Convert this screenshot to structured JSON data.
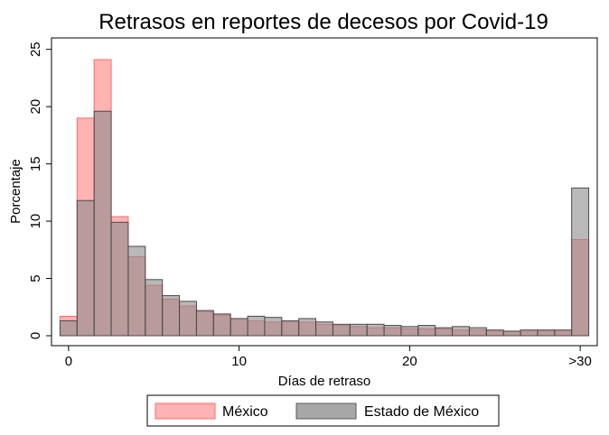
{
  "chart_data": {
    "type": "bar",
    "title": "Retrasos en reportes de decesos por Covid-19",
    "xlabel": "Días de retraso",
    "ylabel": "Porcentaje",
    "xlim": [
      -1,
      31
    ],
    "ylim": [
      0,
      26
    ],
    "x_ticks": [
      {
        "value": 0,
        "label": "0"
      },
      {
        "value": 10,
        "label": "10"
      },
      {
        "value": 20,
        "label": "20"
      },
      {
        "value": 30,
        "label": ">30"
      }
    ],
    "y_ticks": [
      {
        "value": 0,
        "label": "0"
      },
      {
        "value": 5,
        "label": "5"
      },
      {
        "value": 10,
        "label": "10"
      },
      {
        "value": 15,
        "label": "15"
      },
      {
        "value": 20,
        "label": "20"
      },
      {
        "value": 25,
        "label": "25"
      }
    ],
    "x": [
      0,
      1,
      2,
      3,
      4,
      5,
      6,
      7,
      8,
      9,
      10,
      11,
      12,
      13,
      14,
      15,
      16,
      17,
      18,
      19,
      20,
      21,
      22,
      23,
      24,
      25,
      26,
      27,
      28,
      29,
      30
    ],
    "series": [
      {
        "name": "México",
        "color": "#ff9999",
        "values": [
          1.7,
          19.0,
          24.1,
          10.4,
          6.9,
          4.4,
          3.2,
          2.6,
          2.1,
          1.8,
          1.5,
          1.3,
          1.2,
          1.2,
          1.2,
          1.0,
          0.9,
          0.8,
          0.7,
          0.7,
          0.6,
          0.6,
          0.6,
          0.5,
          0.5,
          0.4,
          0.4,
          0.4,
          0.4,
          0.4,
          8.4
        ]
      },
      {
        "name": "Estado de México",
        "color": "#8a8a8a",
        "values": [
          1.3,
          11.8,
          19.6,
          9.9,
          7.8,
          4.9,
          3.5,
          3.0,
          2.2,
          1.9,
          1.5,
          1.7,
          1.6,
          1.3,
          1.5,
          1.2,
          1.0,
          1.0,
          1.0,
          0.9,
          0.8,
          0.9,
          0.7,
          0.8,
          0.7,
          0.5,
          0.4,
          0.5,
          0.5,
          0.5,
          12.9
        ]
      }
    ],
    "legend_position": "bottom",
    "grid": false
  }
}
